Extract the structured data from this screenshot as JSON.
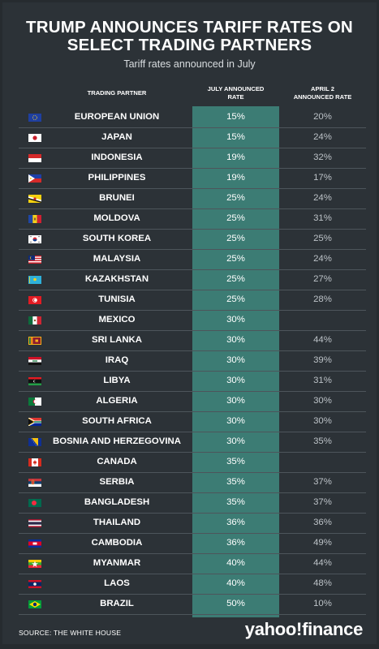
{
  "title": "TRUMP ANNOUNCES TARIFF RATES ON SELECT TRADING PARTNERS",
  "title_line1": "TRUMP ANNOUNCES TARIFF RATES ON",
  "title_line2": "SELECT TRADING PARTNERS",
  "subtitle": "Tariff rates announced in July",
  "headers": {
    "partner": "TRADING PARTNER",
    "july_line1": "JULY ANNOUNCED",
    "july_line2": "RATE",
    "april_line1": "APRIL 2",
    "april_line2": "ANNOUNCED RATE"
  },
  "colors": {
    "background": "#2c3237",
    "july_column": "#3c7c74",
    "divider": "#4d555b",
    "april_text": "#bcc2c7"
  },
  "source": "SOURCE: THE WHITE HOUSE",
  "brand": "yahoo!finance",
  "chart_data": {
    "type": "table",
    "columns": [
      "TRADING PARTNER",
      "JULY ANNOUNCED RATE",
      "APRIL 2 ANNOUNCED RATE"
    ],
    "rows": [
      {
        "flag": "flag-eu-icon",
        "country": "EUROPEAN UNION",
        "july": "15%",
        "april": "20%"
      },
      {
        "flag": "flag-japan-icon",
        "country": "JAPAN",
        "july": "15%",
        "april": "24%"
      },
      {
        "flag": "flag-indonesia-icon",
        "country": "INDONESIA",
        "july": "19%",
        "april": "32%"
      },
      {
        "flag": "flag-philippines-icon",
        "country": "PHILIPPINES",
        "july": "19%",
        "april": "17%"
      },
      {
        "flag": "flag-brunei-icon",
        "country": "BRUNEI",
        "july": "25%",
        "april": "24%"
      },
      {
        "flag": "flag-moldova-icon",
        "country": "MOLDOVA",
        "july": "25%",
        "april": "31%"
      },
      {
        "flag": "flag-south-korea-icon",
        "country": "SOUTH KOREA",
        "july": "25%",
        "april": "25%"
      },
      {
        "flag": "flag-malaysia-icon",
        "country": "MALAYSIA",
        "july": "25%",
        "april": "24%"
      },
      {
        "flag": "flag-kazakhstan-icon",
        "country": "KAZAKHSTAN",
        "july": "25%",
        "april": "27%"
      },
      {
        "flag": "flag-tunisia-icon",
        "country": "TUNISIA",
        "july": "25%",
        "april": "28%"
      },
      {
        "flag": "flag-mexico-icon",
        "country": "MEXICO",
        "july": "30%",
        "april": ""
      },
      {
        "flag": "flag-sri-lanka-icon",
        "country": "SRI LANKA",
        "july": "30%",
        "april": "44%"
      },
      {
        "flag": "flag-iraq-icon",
        "country": "IRAQ",
        "july": "30%",
        "april": "39%"
      },
      {
        "flag": "flag-libya-icon",
        "country": "LIBYA",
        "july": "30%",
        "april": "31%"
      },
      {
        "flag": "flag-algeria-icon",
        "country": "ALGERIA",
        "july": "30%",
        "april": "30%"
      },
      {
        "flag": "flag-south-africa-icon",
        "country": "SOUTH AFRICA",
        "july": "30%",
        "april": "30%"
      },
      {
        "flag": "flag-bosnia-icon",
        "country": "BOSNIA AND HERZEGOVINA",
        "july": "30%",
        "april": "35%"
      },
      {
        "flag": "flag-canada-icon",
        "country": "CANADA",
        "july": "35%",
        "april": ""
      },
      {
        "flag": "flag-serbia-icon",
        "country": "SERBIA",
        "july": "35%",
        "april": "37%"
      },
      {
        "flag": "flag-bangladesh-icon",
        "country": "BANGLADESH",
        "july": "35%",
        "april": "37%"
      },
      {
        "flag": "flag-thailand-icon",
        "country": "THAILAND",
        "july": "36%",
        "april": "36%"
      },
      {
        "flag": "flag-cambodia-icon",
        "country": "CAMBODIA",
        "july": "36%",
        "april": "49%"
      },
      {
        "flag": "flag-myanmar-icon",
        "country": "MYANMAR",
        "july": "40%",
        "april": "44%"
      },
      {
        "flag": "flag-laos-icon",
        "country": "LAOS",
        "july": "40%",
        "april": "48%"
      },
      {
        "flag": "flag-brazil-icon",
        "country": "BRAZIL",
        "july": "50%",
        "april": "10%"
      }
    ]
  }
}
